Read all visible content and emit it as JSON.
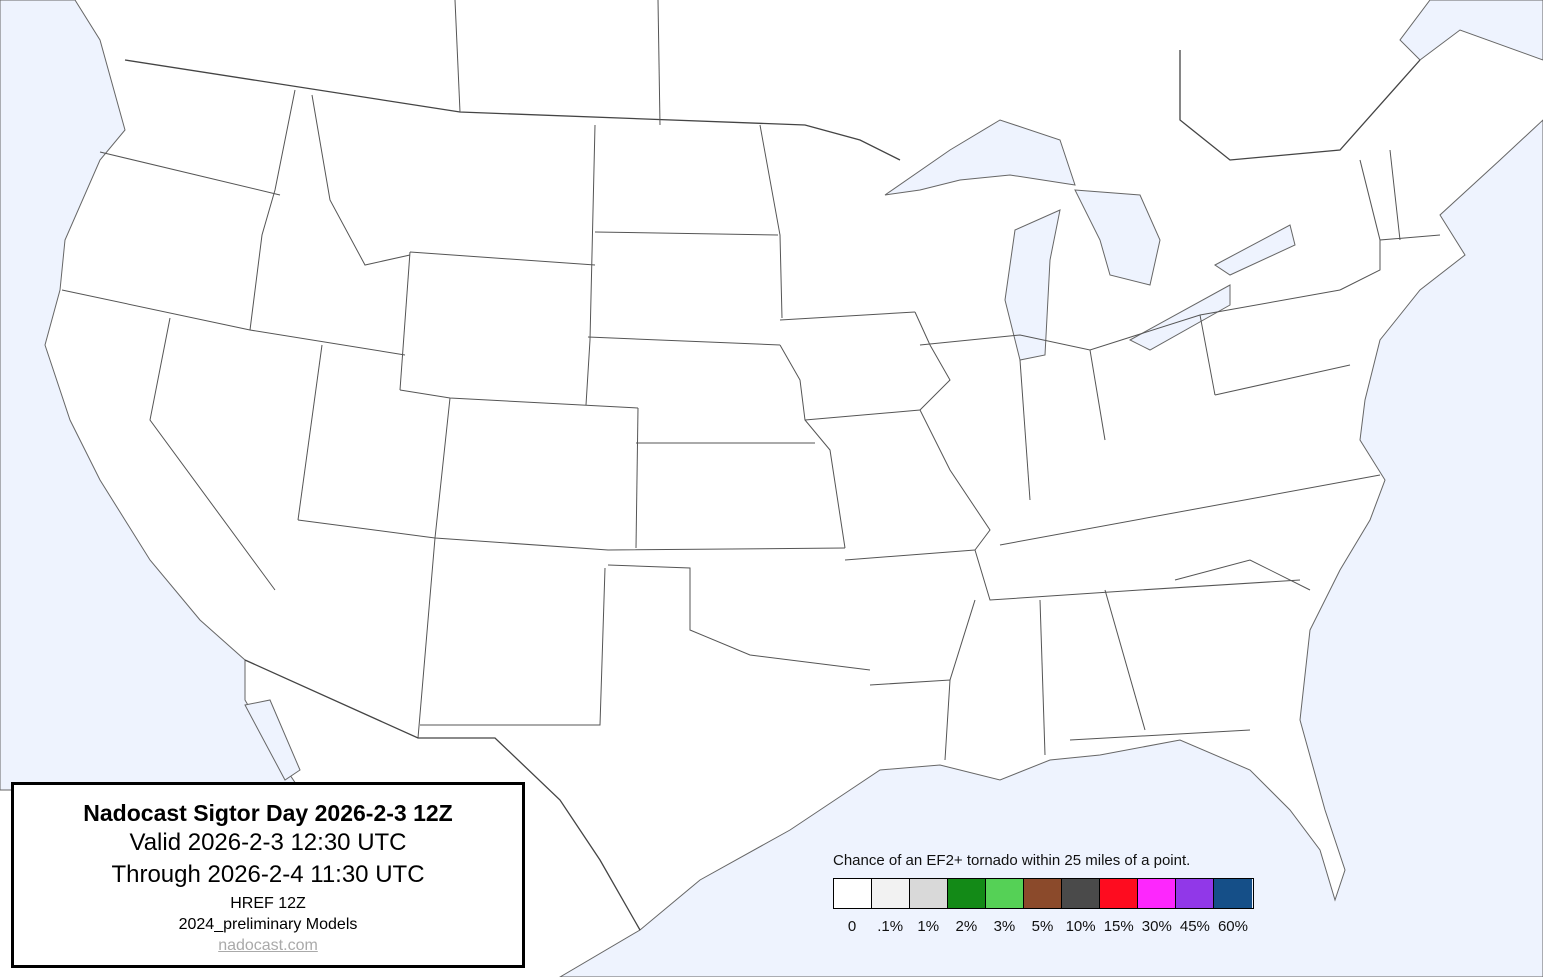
{
  "title_box": {
    "title": "Nadocast Sigtor Day 2026-2-3 12Z",
    "valid": "Valid 2026-2-3 12:30 UTC",
    "through": "Through 2026-2-4 11:30 UTC",
    "model": "HREF 12Z",
    "models_version": "2024_preliminary Models",
    "site_link": "nadocast.com"
  },
  "legend": {
    "caption": "Chance of an EF2+ tornado within 25 miles of a point.",
    "bins": [
      {
        "label": "0",
        "color": "#ffffff"
      },
      {
        "label": ".1%",
        "color": "#f2f2f2"
      },
      {
        "label": "1%",
        "color": "#d9d9d9"
      },
      {
        "label": "2%",
        "color": "#138a17"
      },
      {
        "label": "3%",
        "color": "#55d156"
      },
      {
        "label": "5%",
        "color": "#8b4a2b"
      },
      {
        "label": "10%",
        "color": "#4a4a4a"
      },
      {
        "label": "15%",
        "color": "#fe0c1f"
      },
      {
        "label": "30%",
        "color": "#fd27fd"
      },
      {
        "label": "45%",
        "color": "#9138e8"
      },
      {
        "label": "60%",
        "color": "#154f88"
      }
    ]
  },
  "map": {
    "water_color": "#eef3fe",
    "land_color": "#ffffff"
  }
}
